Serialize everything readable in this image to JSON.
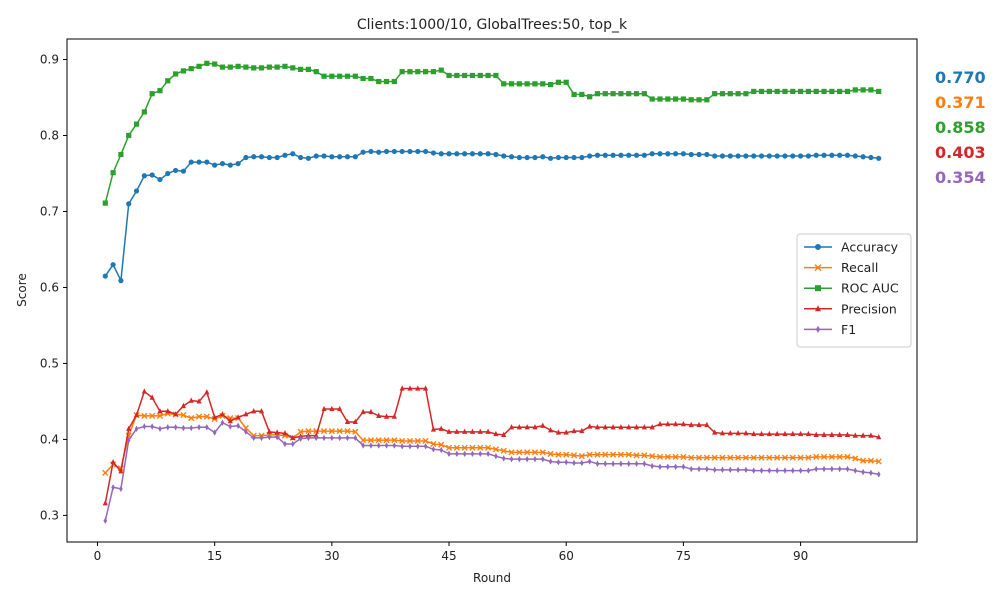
{
  "chart_data": {
    "type": "line",
    "title": "Clients:1000/10, GlobalTrees:50, top_k",
    "xlabel": "Round",
    "ylabel": "Score",
    "xlim": [
      -3.9,
      104.9
    ],
    "ylim": [
      0.265,
      0.927
    ],
    "xticks": [
      0,
      15,
      30,
      45,
      60,
      75,
      90
    ],
    "yticks": [
      0.3,
      0.4,
      0.5,
      0.6,
      0.7,
      0.8,
      0.9
    ],
    "grid": false,
    "legend_position": "center-right",
    "x_start": 1,
    "series": [
      {
        "name": "Accuracy",
        "color": "#1f77b4",
        "marker": "circle",
        "final_label": "0.770",
        "values": [
          0.615,
          0.63,
          0.609,
          0.71,
          0.727,
          0.747,
          0.748,
          0.742,
          0.75,
          0.754,
          0.753,
          0.765,
          0.765,
          0.765,
          0.761,
          0.763,
          0.761,
          0.763,
          0.771,
          0.772,
          0.772,
          0.771,
          0.771,
          0.774,
          0.776,
          0.771,
          0.77,
          0.773,
          0.773,
          0.772,
          0.772,
          0.772,
          0.772,
          0.778,
          0.779,
          0.778,
          0.779,
          0.779,
          0.779,
          0.779,
          0.779,
          0.779,
          0.777,
          0.776,
          0.776,
          0.776,
          0.776,
          0.776,
          0.776,
          0.776,
          0.775,
          0.773,
          0.772,
          0.771,
          0.771,
          0.771,
          0.772,
          0.77,
          0.771,
          0.771,
          0.771,
          0.771,
          0.773,
          0.774,
          0.774,
          0.774,
          0.774,
          0.774,
          0.774,
          0.774,
          0.776,
          0.776,
          0.776,
          0.776,
          0.776,
          0.775,
          0.775,
          0.775,
          0.773,
          0.773,
          0.773,
          0.773,
          0.773,
          0.773,
          0.773,
          0.773,
          0.773,
          0.773,
          0.773,
          0.773,
          0.773,
          0.774,
          0.774,
          0.774,
          0.774,
          0.774,
          0.773,
          0.772,
          0.771,
          0.77
        ]
      },
      {
        "name": "Recall",
        "color": "#ff7f0e",
        "marker": "x",
        "final_label": "0.371",
        "values": [
          0.356,
          0.367,
          0.362,
          0.405,
          0.432,
          0.431,
          0.431,
          0.431,
          0.434,
          0.433,
          0.432,
          0.428,
          0.43,
          0.43,
          0.427,
          0.431,
          0.428,
          0.428,
          0.415,
          0.405,
          0.405,
          0.406,
          0.406,
          0.405,
          0.402,
          0.41,
          0.411,
          0.411,
          0.411,
          0.411,
          0.411,
          0.411,
          0.41,
          0.399,
          0.399,
          0.399,
          0.399,
          0.399,
          0.398,
          0.398,
          0.398,
          0.398,
          0.394,
          0.393,
          0.389,
          0.389,
          0.389,
          0.389,
          0.389,
          0.389,
          0.387,
          0.385,
          0.383,
          0.383,
          0.383,
          0.383,
          0.383,
          0.381,
          0.38,
          0.38,
          0.379,
          0.378,
          0.38,
          0.38,
          0.38,
          0.38,
          0.38,
          0.38,
          0.379,
          0.379,
          0.378,
          0.377,
          0.377,
          0.377,
          0.377,
          0.376,
          0.376,
          0.376,
          0.376,
          0.376,
          0.376,
          0.376,
          0.376,
          0.376,
          0.376,
          0.376,
          0.376,
          0.376,
          0.376,
          0.376,
          0.376,
          0.377,
          0.377,
          0.377,
          0.377,
          0.377,
          0.375,
          0.372,
          0.372,
          0.371
        ]
      },
      {
        "name": "ROC AUC",
        "color": "#2ca02c",
        "marker": "square",
        "final_label": "0.858",
        "values": [
          0.711,
          0.751,
          0.775,
          0.8,
          0.815,
          0.831,
          0.855,
          0.859,
          0.872,
          0.881,
          0.885,
          0.888,
          0.891,
          0.895,
          0.894,
          0.89,
          0.89,
          0.891,
          0.89,
          0.889,
          0.889,
          0.89,
          0.89,
          0.891,
          0.889,
          0.887,
          0.887,
          0.884,
          0.878,
          0.878,
          0.878,
          0.878,
          0.878,
          0.875,
          0.875,
          0.871,
          0.871,
          0.871,
          0.884,
          0.884,
          0.884,
          0.884,
          0.884,
          0.886,
          0.879,
          0.879,
          0.879,
          0.879,
          0.879,
          0.879,
          0.879,
          0.868,
          0.868,
          0.868,
          0.868,
          0.868,
          0.868,
          0.867,
          0.87,
          0.87,
          0.854,
          0.854,
          0.851,
          0.855,
          0.855,
          0.855,
          0.855,
          0.855,
          0.855,
          0.855,
          0.848,
          0.848,
          0.848,
          0.848,
          0.848,
          0.847,
          0.847,
          0.847,
          0.855,
          0.855,
          0.855,
          0.855,
          0.855,
          0.858,
          0.858,
          0.858,
          0.858,
          0.858,
          0.858,
          0.858,
          0.858,
          0.858,
          0.858,
          0.858,
          0.858,
          0.858,
          0.86,
          0.86,
          0.86,
          0.858
        ]
      },
      {
        "name": "Precision",
        "color": "#d62728",
        "marker": "triangle",
        "final_label": "0.403",
        "values": [
          0.316,
          0.37,
          0.358,
          0.414,
          0.432,
          0.463,
          0.455,
          0.437,
          0.437,
          0.433,
          0.444,
          0.451,
          0.45,
          0.462,
          0.429,
          0.433,
          0.424,
          0.429,
          0.433,
          0.437,
          0.437,
          0.41,
          0.409,
          0.408,
          0.402,
          0.404,
          0.405,
          0.405,
          0.44,
          0.44,
          0.44,
          0.423,
          0.423,
          0.436,
          0.436,
          0.431,
          0.43,
          0.43,
          0.467,
          0.467,
          0.467,
          0.467,
          0.413,
          0.414,
          0.41,
          0.41,
          0.41,
          0.41,
          0.41,
          0.41,
          0.407,
          0.406,
          0.416,
          0.416,
          0.416,
          0.416,
          0.418,
          0.412,
          0.409,
          0.409,
          0.411,
          0.411,
          0.417,
          0.416,
          0.416,
          0.416,
          0.416,
          0.416,
          0.416,
          0.416,
          0.416,
          0.42,
          0.42,
          0.42,
          0.42,
          0.419,
          0.419,
          0.419,
          0.409,
          0.408,
          0.408,
          0.408,
          0.408,
          0.407,
          0.407,
          0.407,
          0.407,
          0.407,
          0.407,
          0.407,
          0.407,
          0.406,
          0.406,
          0.406,
          0.406,
          0.406,
          0.405,
          0.405,
          0.405,
          0.403
        ]
      },
      {
        "name": "F1",
        "color": "#9467bd",
        "marker": "diamond",
        "final_label": "0.354",
        "values": [
          0.293,
          0.337,
          0.335,
          0.399,
          0.414,
          0.417,
          0.417,
          0.414,
          0.416,
          0.416,
          0.415,
          0.415,
          0.416,
          0.416,
          0.409,
          0.422,
          0.417,
          0.418,
          0.41,
          0.402,
          0.402,
          0.403,
          0.403,
          0.394,
          0.394,
          0.401,
          0.402,
          0.402,
          0.402,
          0.402,
          0.402,
          0.402,
          0.402,
          0.392,
          0.392,
          0.392,
          0.392,
          0.392,
          0.391,
          0.391,
          0.391,
          0.391,
          0.387,
          0.386,
          0.381,
          0.381,
          0.381,
          0.381,
          0.381,
          0.381,
          0.378,
          0.375,
          0.374,
          0.374,
          0.374,
          0.374,
          0.374,
          0.371,
          0.37,
          0.37,
          0.369,
          0.369,
          0.371,
          0.368,
          0.368,
          0.368,
          0.368,
          0.368,
          0.368,
          0.368,
          0.365,
          0.364,
          0.364,
          0.364,
          0.364,
          0.361,
          0.361,
          0.361,
          0.36,
          0.36,
          0.36,
          0.36,
          0.36,
          0.359,
          0.359,
          0.359,
          0.359,
          0.359,
          0.359,
          0.359,
          0.359,
          0.361,
          0.361,
          0.361,
          0.361,
          0.361,
          0.359,
          0.357,
          0.356,
          0.354
        ]
      }
    ]
  }
}
